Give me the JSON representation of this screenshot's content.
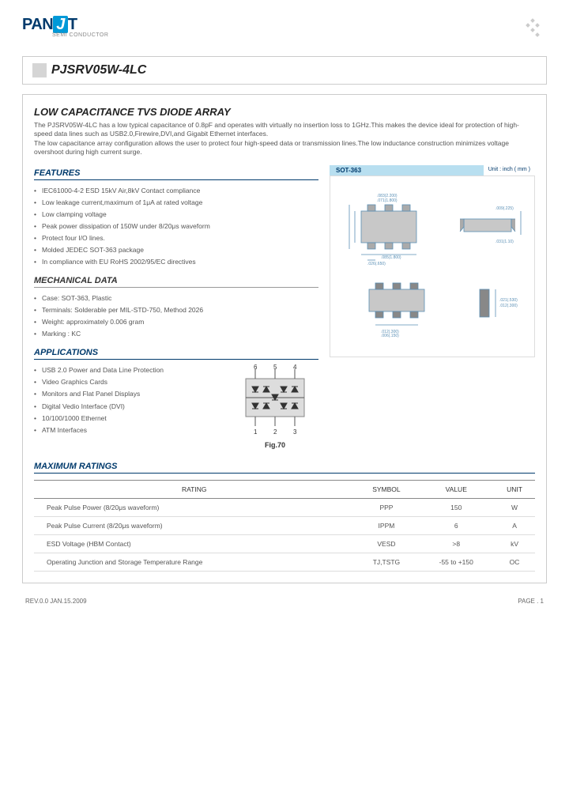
{
  "logo": {
    "brand_pre": "PAN",
    "brand_j": "J",
    "brand_post": "T",
    "sub": "SEMI\nCONDUCTOR"
  },
  "part_number": "PJSRV05W-4LC",
  "title": "LOW CAPACITANCE TVS DIODE ARRAY",
  "description": "The PJSRV05W-4LC has a low typical capacitance of 0.8pF and operates with virtually no insertion loss to 1GHz.This makes the device ideal for protection of high-speed data lines such as USB2.0,Firewire,DVI,and Gigabit Ethernet interfaces.\nThe low capacitance array configuration allows the user to protect four high-speed data or transmission lines.The low inductance construction minimizes voltage overshoot during high current surge.",
  "features": {
    "title": "FEATURES",
    "items": [
      "IEC61000-4-2 ESD 15kV Air,8kV Contact compliance",
      "Low leakage current,maximum of 1μA at rated voltage",
      "Low clamping voltage",
      "Peak power dissipation of 150W under 8/20μs waveform",
      "Protect four I/O lines.",
      "Molded JEDEC SOT-363 package",
      "In compliance with EU RoHS 2002/95/EC directives"
    ]
  },
  "mechanical": {
    "title": "MECHANICAL DATA",
    "items": [
      "Case: SOT-363, Plastic",
      "Terminals: Solderable per MIL-STD-750, Method 2026",
      "Weight: approximately 0.006 gram",
      "Marking : KC"
    ]
  },
  "applications": {
    "title": "APPLICATIONS",
    "items": [
      "USB 2.0 Power and Data Line Protection",
      "Video Graphics Cards",
      "Monitors and Flat Panel Displays",
      "Digital Vedio Interface (DVI)",
      "10/100/1000 Ethernet",
      "ATM Interfaces"
    ],
    "fig_label": "Fig.70",
    "pins": [
      "6",
      "5",
      "4",
      "1",
      "2",
      "3"
    ]
  },
  "package": {
    "name": "SOT-363",
    "unit": "Unit : inch ( mm )"
  },
  "ratings": {
    "title": "MAXIMUM RATINGS",
    "headers": [
      "RATING",
      "SYMBOL",
      "VALUE",
      "UNIT"
    ],
    "rows": [
      [
        "Peak Pulse Power (8/20μs waveform)",
        "PPP",
        "150",
        "W"
      ],
      [
        "Peak Pulse Current (8/20μs waveform)",
        "IPPM",
        "6",
        "A"
      ],
      [
        "ESD Voltage (HBM Contact)",
        "VESD",
        ">8",
        "kV"
      ],
      [
        "Operating Junction and Storage Temperature Range",
        "TJ,TSTG",
        "-55 to +150",
        "OC"
      ]
    ]
  },
  "footer": {
    "rev": "REV.0.0 JAN.15.2009",
    "page": "PAGE  . 1"
  },
  "colors": {
    "brand_blue": "#003a6c",
    "accent": "#0099d8",
    "pkg_bg": "#b8dff0"
  }
}
